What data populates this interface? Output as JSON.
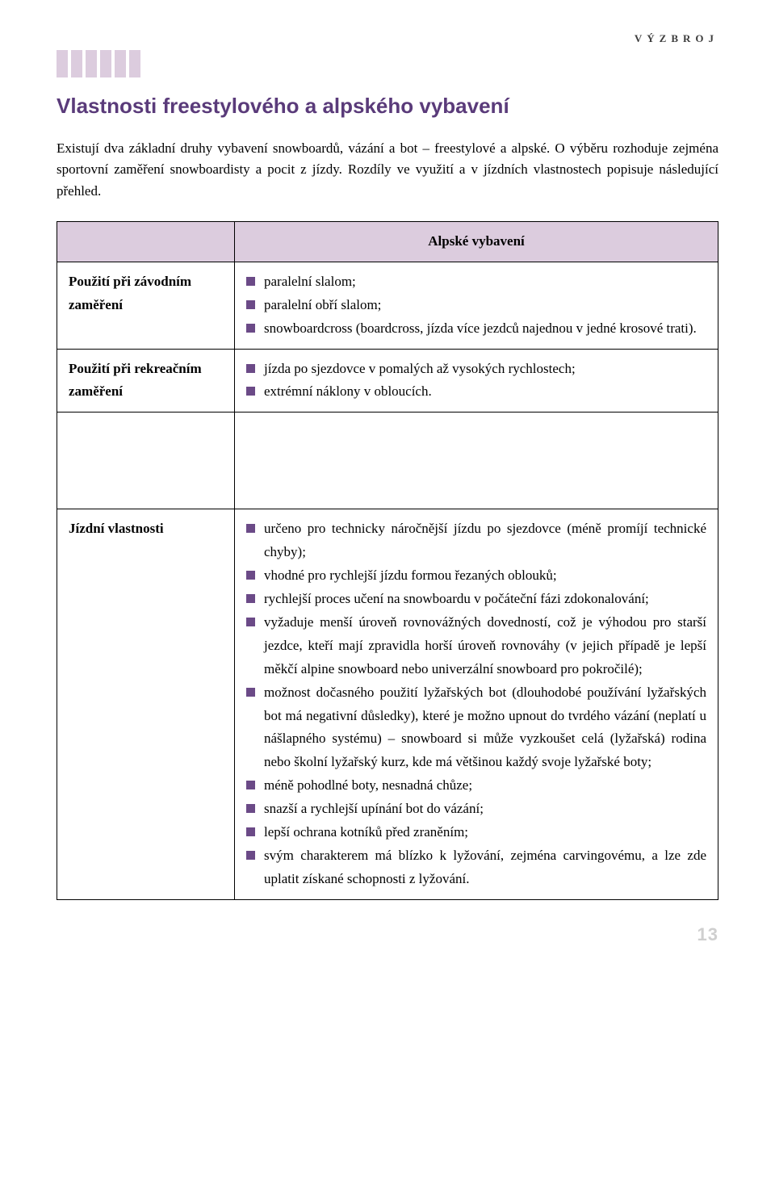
{
  "running_head": "VÝZBROJ",
  "section_title": "Vlastnosti freestylového a alpského vybavení",
  "intro": "Existují dva základní druhy vybavení snowboardů, vázání a bot – freestylové a alpské. O výběru rozhoduje zejména sportovní zaměření snowboardisty a pocit z jízdy. Rozdíly ve využití a v jízdních vlastnostech popisuje následující přehled.",
  "table": {
    "column_header": "Alpské vybavení",
    "rows": [
      {
        "label": "Použití při závodním zaměření",
        "items": [
          "paralelní slalom;",
          "paralelní obří slalom;",
          "snowboardcross (boardcross, jízda více jezdců najednou v jedné krosové trati)."
        ]
      },
      {
        "label": "Použití při rekreačním zaměření",
        "items": [
          "jízda po sjezdovce v pomalých až vysokých rychlostech;",
          "extrémní náklony v obloucích."
        ]
      },
      {
        "label": "Jízdní vlastnosti",
        "items": [
          "určeno pro technicky náročnější jízdu po sjezdovce (méně promíjí technické chyby);",
          "vhodné pro rychlejší jízdu formou řezaných oblouků;",
          "rychlejší proces učení na snowboardu v počáteční fázi zdokonalování;",
          "vyžaduje menší úroveň rovnovážných dovedností, což je výhodou pro starší jezdce, kteří mají zpravidla horší úroveň rovnováhy (v jejich případě je lepší měkčí alpine snowboard nebo univerzální snowboard pro pokročilé);",
          "možnost dočasného použití lyžařských bot (dlouhodobé používání lyžařských bot má negativní důsledky), které je možno upnout do tvrdého vázání (neplatí u nášlapného systému) – snowboard si může vyzkoušet celá (lyžařská) rodina nebo školní lyžařský kurz, kde má většinou každý svoje lyžařské boty;",
          "méně pohodlné boty, nesnadná chůze;",
          "snazší a rychlejší upínání bot do vázání;",
          "lepší ochrana kotníků před zraněním;",
          "svým charakterem má blízko k lyžování, zejména carvingovému, a lze zde uplatit získané schopnosti z lyžování."
        ]
      }
    ]
  },
  "page_number": "13",
  "colors": {
    "accent_purple": "#5a3b7a",
    "lavender_fill": "#dcccde",
    "bullet_color": "#6b4a87",
    "pagenum_color": "#cfcfcf"
  }
}
